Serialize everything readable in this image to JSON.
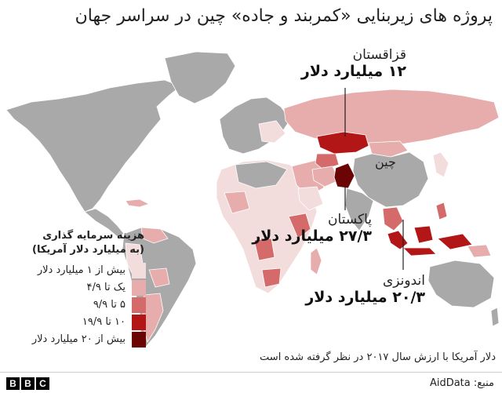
{
  "title": "پروژه های زیربنایی «کمربند و جاده» چین در سراسر جهان",
  "colors": {
    "land": "#a9a9a9",
    "tier1": "#f2dcdc",
    "tier2": "#e7acac",
    "tier3": "#d46a6a",
    "tier4": "#b31616",
    "tier5": "#6b0505"
  },
  "legend": {
    "title_line1": "هزینه سرمایه گذاری",
    "title_line2": "(به میلیارد دلار آمریکا)",
    "items": [
      "بیش از ۱ میلیارد دلار",
      "یک تا ۴/۹",
      "۵ تا ۹/۹",
      "۱۰ تا ۱۹/۹",
      "بیش از ۲۰ میلیارد دلار"
    ]
  },
  "callouts": {
    "kazakhstan": {
      "name": "قزاقستان",
      "value": "۱۲ میلیارد دلار"
    },
    "pakistan": {
      "name": "پاکستان",
      "value": "۲۷/۳ میلیارد دلار"
    },
    "indonesia": {
      "name": "اندونزی",
      "value": "۲۰/۳ میلیارد دلار"
    }
  },
  "china_label": "چین",
  "note": "دلار آمریکا با ارزش سال ۲۰۱۷ در نظر گرفته شده است",
  "footer": {
    "logo": [
      "B",
      "B",
      "C"
    ],
    "source": "منبع: AidData"
  }
}
